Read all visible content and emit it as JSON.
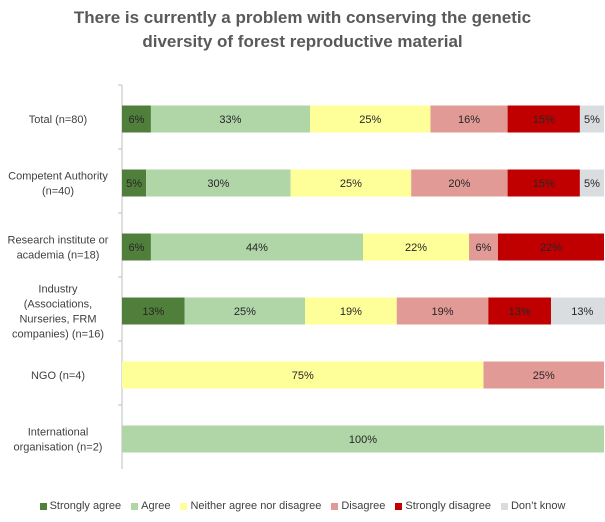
{
  "chart_data": {
    "type": "bar",
    "orientation": "horizontal",
    "stacked": "percent",
    "title_lines": [
      "There is currently a problem with conserving the genetic",
      "diversity of forest reproductive material"
    ],
    "categories": [
      [
        "Total (n=80)"
      ],
      [
        "Competent Authority",
        "(n=40)"
      ],
      [
        "Research institute or",
        "academia (n=18)"
      ],
      [
        "Industry",
        "(Associations,",
        "Nurseries, FRM",
        "companies) (n=16)"
      ],
      [
        "NGO (n=4)"
      ],
      [
        "International",
        "organisation (n=2)"
      ]
    ],
    "series": [
      {
        "name": "Strongly agree",
        "color": "#4f7f3a",
        "values": [
          6,
          5,
          6,
          13,
          0,
          0
        ]
      },
      {
        "name": "Agree",
        "color": "#b0d6a8",
        "values": [
          33,
          30,
          44,
          25,
          0,
          100
        ]
      },
      {
        "name": "Neither agree nor disagree",
        "color": "#ffff99",
        "values": [
          25,
          25,
          22,
          19,
          75,
          0
        ]
      },
      {
        "name": "Disagree",
        "color": "#e29a96",
        "values": [
          16,
          20,
          6,
          19,
          25,
          0
        ]
      },
      {
        "name": "Strongly disagree",
        "color": "#c00000",
        "values": [
          15,
          15,
          22,
          13,
          0,
          0
        ]
      },
      {
        "name": "Don’t know",
        "color": "#d9dde0",
        "values": [
          5,
          5,
          0,
          13,
          0,
          0
        ]
      }
    ],
    "xlim": [
      0,
      100
    ],
    "legend_position": "bottom",
    "grid": false
  }
}
